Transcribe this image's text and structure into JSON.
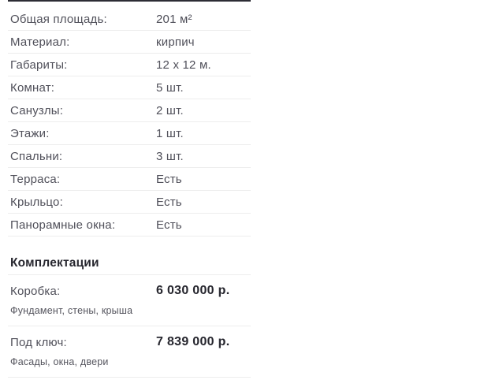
{
  "specs": [
    {
      "label": "Общая площадь:",
      "value": "201 м²"
    },
    {
      "label": "Материал:",
      "value": "кирпич"
    },
    {
      "label": "Габариты:",
      "value": "12 x 12 м."
    },
    {
      "label": "Комнат:",
      "value": "5 шт."
    },
    {
      "label": "Санузлы:",
      "value": "2 шт."
    },
    {
      "label": "Этажи:",
      "value": "1 шт."
    },
    {
      "label": "Спальни:",
      "value": "3 шт."
    },
    {
      "label": "Терраса:",
      "value": "Есть"
    },
    {
      "label": "Крыльцо:",
      "value": "Есть"
    },
    {
      "label": "Панорамные окна:",
      "value": "Есть"
    }
  ],
  "packages": {
    "heading": "Комплектации",
    "items": [
      {
        "label": "Коробка:",
        "price": "6 030 000 р.",
        "note": "Фундамент, стены, крыша"
      },
      {
        "label": "Под ключ:",
        "price": "7 839 000 р.",
        "note": "Фасады, окна, двери"
      }
    ]
  },
  "colors": {
    "text": "#50505a",
    "strong": "#27272f",
    "divider": "#ededed",
    "top_line": "#2c2c34"
  }
}
